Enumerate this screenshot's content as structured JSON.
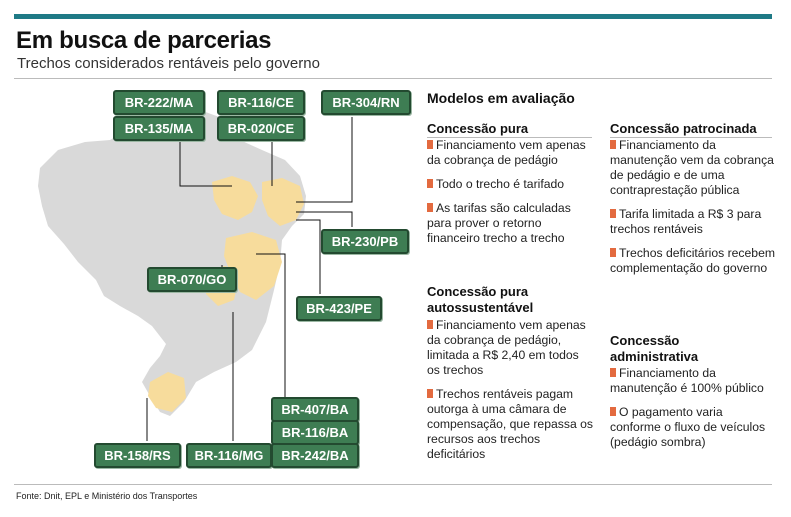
{
  "header": {
    "title": "Em busca de parcerias",
    "subtitle": "Trechos considerados rentáveis pelo governo"
  },
  "map": {
    "colors": {
      "land": "#d9d9d9",
      "highlight": "#f7dc9c",
      "tag": "#3e7d53",
      "bullet": "#e36a3f",
      "topbar": "#1f7a86"
    },
    "tags": [
      "BR-222/MA",
      "BR-116/CE",
      "BR-304/RN",
      "BR-135/MA",
      "BR-020/CE",
      "BR-230/PB",
      "BR-070/GO",
      "BR-423/PE",
      "BR-407/BA",
      "BR-116/BA",
      "BR-158/RS",
      "BR-116/MG",
      "BR-242/BA"
    ]
  },
  "models": {
    "heading": "Modelos em avaliação",
    "concessao_pura": {
      "title": "Concessão pura",
      "bullets": [
        "Financiamento vem apenas da cobrança de pedágio",
        "Todo o trecho é tarifado",
        "As tarifas são calculadas para prover o retorno financeiro trecho a trecho"
      ]
    },
    "concessao_autossustentavel": {
      "title_line1": "Concessão pura",
      "title_line2": "autossustentável",
      "bullets": [
        "Financiamento vem apenas da cobrança de pedágio, limitada a R$ 2,40 em todos os trechos",
        "Trechos rentáveis pagam outorga à uma câmara de compensação, que repassa os recursos aos trechos deficitários"
      ]
    },
    "concessao_patrocinada": {
      "title": "Concessão patrocinada",
      "bullets": [
        "Financiamento da manutenção vem da cobrança de pedágio e de uma contraprestação pública",
        "Tarifa limitada a R$ 3 para trechos rentáveis",
        "Trechos deficitários recebem complementação do governo"
      ]
    },
    "concessao_administrativa": {
      "title_line1": "Concessão",
      "title_line2": "administrativa",
      "bullets": [
        "Financiamento da manutenção é 100% público",
        "O pagamento varia conforme o fluxo de veículos (pedágio sombra)"
      ]
    }
  },
  "footer": {
    "source": "Fonte: Dnit, EPL e Ministério dos Transportes"
  }
}
